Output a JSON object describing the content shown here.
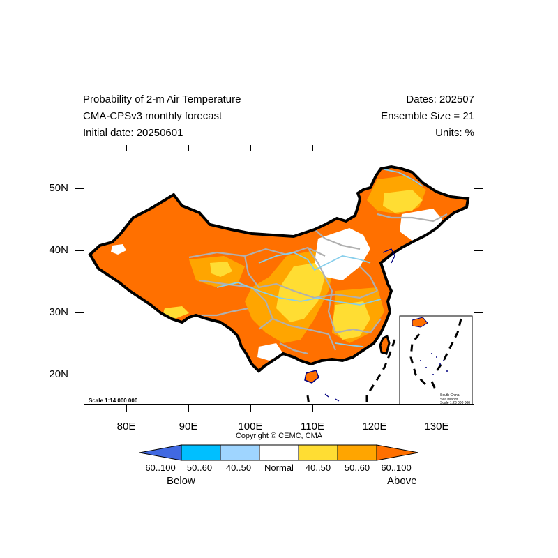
{
  "header": {
    "title_line1": "Probability of 2-m Air Temperature",
    "title_line2": "CMA-CPSv3 monthly forecast",
    "title_line3": "Initial date: 20250601",
    "right_line1": "Dates: 202507",
    "right_line2": "Ensemble Size = 21",
    "right_line3": "Units: %"
  },
  "map": {
    "latitude_labels": [
      "50N",
      "40N",
      "30N",
      "20N"
    ],
    "longitude_labels": [
      "80E",
      "90E",
      "100E",
      "110E",
      "120E",
      "130E"
    ],
    "scale_label": "Scale 1:14 000 000",
    "inset": {
      "line1": "South China",
      "line2": "Sea Islands",
      "line3": "Scale 1:28 000 000"
    },
    "colors": {
      "above_60_100": "#ff7000",
      "above_50_60": "#ffa500",
      "above_40_50": "#ffdd33",
      "normal": "#ffffff",
      "below_40_50": "#9fd5ff",
      "below_50_60": "#00bfff",
      "below_60_100": "#4169e1",
      "border": "#000000",
      "province": "#b0b0b0",
      "river": "#87ceeb",
      "coast": "#000080"
    }
  },
  "copyright": "Copyright © CEMC, CMA",
  "colorbar": {
    "labels": [
      "60..100",
      "50..60",
      "40..50",
      "Normal",
      "40..50",
      "50..60",
      "60..100"
    ],
    "below_label": "Below",
    "above_label": "Above"
  }
}
